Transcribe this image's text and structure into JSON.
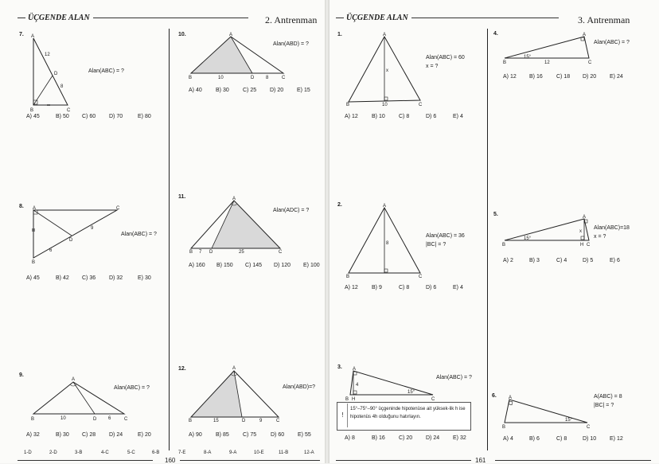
{
  "left_page": {
    "section": "ÜÇGENDE ALAN",
    "title": "2. Antrenman",
    "page_number": "160",
    "answer_key": [
      "1-D",
      "2-D",
      "3-B",
      "4-C",
      "5-C",
      "6-B",
      "7-E",
      "8-A",
      "9-A",
      "10-E",
      "11-B",
      "12-A"
    ]
  },
  "right_page": {
    "section": "ÜÇGENDE ALAN",
    "title": "3. Antrenman",
    "page_number": "161",
    "hint": "15°–75°–90° üçgeninde hipotenüse ait yüksek-lik h ise hipotenüs 4h olduğunu hatırlayın."
  },
  "questions": {
    "q7": {
      "num": "7.",
      "ask": [
        "Alan(ABC) = ?"
      ],
      "opts": [
        "A) 45",
        "B) 50",
        "C) 60",
        "D) 70",
        "E) 80"
      ],
      "labels": {
        "A": "A",
        "B": "B",
        "C": "C",
        "D": "D",
        "s1": "12",
        "s2": "8"
      }
    },
    "q8": {
      "num": "8.",
      "ask": [
        "Alan(ABC) = ?"
      ],
      "opts": [
        "A) 45",
        "B) 42",
        "C) 36",
        "D) 32",
        "E) 30"
      ],
      "labels": {
        "A": "A",
        "B": "B",
        "C": "C",
        "D": "D",
        "s1": "9",
        "s2": "6"
      }
    },
    "q9": {
      "num": "9.",
      "ask": [
        "Alan(ABC) = ?"
      ],
      "opts": [
        "A) 32",
        "B) 30",
        "C) 28",
        "D) 24",
        "E) 20"
      ],
      "labels": {
        "A": "A",
        "B": "B",
        "C": "C",
        "D": "D",
        "s1": "10",
        "s2": "6"
      }
    },
    "q10": {
      "num": "10.",
      "ask": [
        "Alan(ABD) = ?"
      ],
      "opts": [
        "A) 40",
        "B) 30",
        "C) 25",
        "D) 20",
        "E) 15"
      ],
      "labels": {
        "A": "A",
        "B": "B",
        "C": "C",
        "D": "D",
        "s1": "10",
        "s2": "8"
      }
    },
    "q11": {
      "num": "11.",
      "ask": [
        "Alan(ADC) = ?"
      ],
      "opts": [
        "A) 160",
        "B) 150",
        "C) 145",
        "D) 120",
        "E) 100"
      ],
      "labels": {
        "A": "A",
        "B": "B",
        "C": "C",
        "D": "D",
        "s1": "7",
        "s2": "25"
      }
    },
    "q12": {
      "num": "12.",
      "ask": [
        "Alan(ABD)=?"
      ],
      "opts": [
        "A) 90",
        "B) 85",
        "C) 75",
        "D) 60",
        "E) 55"
      ],
      "labels": {
        "A": "A",
        "B": "B",
        "C": "C",
        "D": "D",
        "s1": "15",
        "s2": "9"
      }
    },
    "r1": {
      "num": "1.",
      "ask": [
        "Alan(ABC) = 60",
        "x = ?"
      ],
      "opts": [
        "A) 12",
        "B) 10",
        "C) 8",
        "D) 6",
        "E) 4"
      ],
      "labels": {
        "A": "A",
        "B": "B",
        "C": "C",
        "s1": "x",
        "s2": "10"
      }
    },
    "r2": {
      "num": "2.",
      "ask": [
        "Alan(ABC) = 36",
        "|BC| = ?"
      ],
      "opts": [
        "A) 12",
        "B) 9",
        "C) 8",
        "D) 6",
        "E) 4"
      ],
      "labels": {
        "A": "A",
        "B": "B",
        "C": "C",
        "s1": "8"
      }
    },
    "r3": {
      "num": "3.",
      "ask": [
        "Alan(ABC) = ?"
      ],
      "opts": [
        "A) 8",
        "B) 16",
        "C) 20",
        "D) 24",
        "E) 32"
      ],
      "labels": {
        "A": "A",
        "B": "B",
        "C": "C",
        "H": "H",
        "s1": "4",
        "ang": "15°"
      }
    },
    "r4": {
      "num": "4.",
      "ask": [
        "Alan(ABC) = ?"
      ],
      "opts": [
        "A) 12",
        "B) 16",
        "C) 18",
        "D) 20",
        "E) 24"
      ],
      "labels": {
        "A": "A",
        "B": "B",
        "C": "C",
        "s1": "12",
        "ang": "15°"
      }
    },
    "r5": {
      "num": "5.",
      "ask": [
        "Alan(ABC)=18",
        "x = ?"
      ],
      "opts": [
        "A) 2",
        "B) 3",
        "C) 4",
        "D) 5",
        "E) 6"
      ],
      "labels": {
        "A": "A",
        "B": "B",
        "C": "C",
        "H": "H",
        "s1": "x",
        "ang": "15°"
      }
    },
    "r6": {
      "num": "6.",
      "ask": [
        "A(ABC) = 8",
        "|BC| = ?"
      ],
      "opts": [
        "A) 4",
        "B) 6",
        "C) 8",
        "D) 10",
        "E) 12"
      ],
      "labels": {
        "A": "A",
        "B": "B",
        "C": "C",
        "ang": "15°"
      }
    }
  }
}
